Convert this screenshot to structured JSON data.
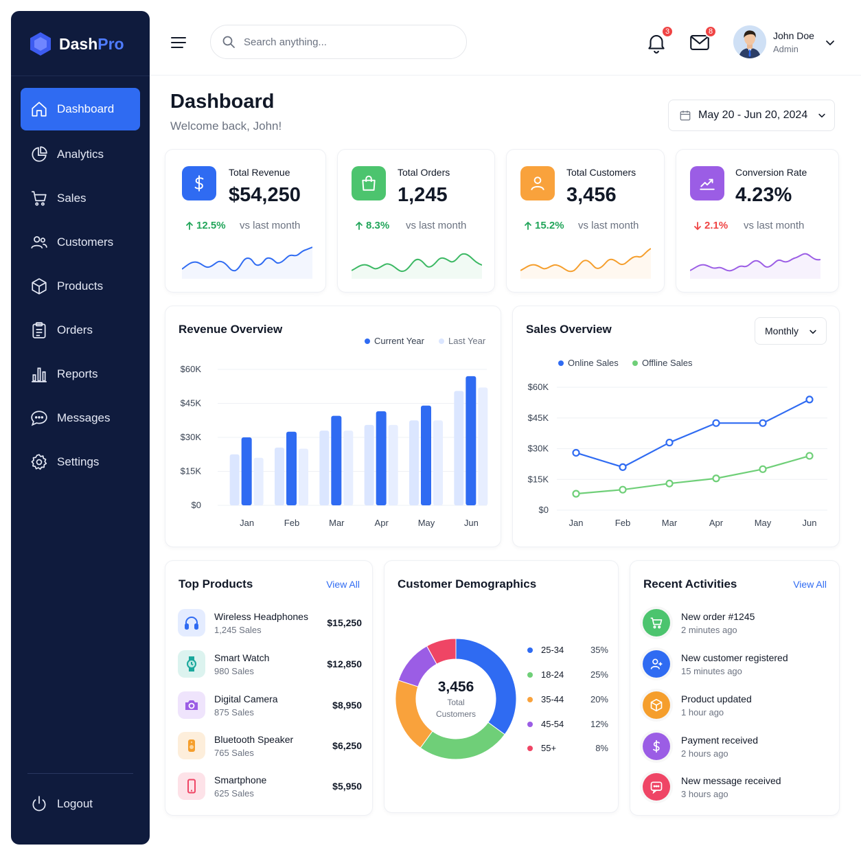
{
  "brand": {
    "name_main": "Dash",
    "name_accent": "Pro"
  },
  "sidebar": {
    "items": [
      {
        "label": "Dashboard",
        "icon": "home-icon",
        "active": true
      },
      {
        "label": "Analytics",
        "icon": "pie-chart-icon"
      },
      {
        "label": "Sales",
        "icon": "cart-icon"
      },
      {
        "label": "Customers",
        "icon": "users-icon"
      },
      {
        "label": "Products",
        "icon": "box-icon"
      },
      {
        "label": "Orders",
        "icon": "clipboard-icon"
      },
      {
        "label": "Reports",
        "icon": "bar-chart-icon"
      },
      {
        "label": "Messages",
        "icon": "chat-icon"
      },
      {
        "label": "Settings",
        "icon": "gear-icon"
      }
    ],
    "logout_label": "Logout"
  },
  "topbar": {
    "search_placeholder": "Search anything...",
    "notifications_count": "3",
    "messages_count": "8",
    "user_name": "John Doe",
    "user_role": "Admin"
  },
  "header": {
    "title": "Dashboard",
    "subtitle": "Welcome back, John!",
    "date_range": "May 20 - Jun 20, 2024"
  },
  "stats": [
    {
      "label": "Total Revenue",
      "value": "$54,250",
      "change": "12.5%",
      "direction": "up",
      "vs": "vs last month",
      "color": "#2f6bf2",
      "icon": "dollar-icon"
    },
    {
      "label": "Total Orders",
      "value": "1,245",
      "change": "8.3%",
      "direction": "up",
      "vs": "vs last month",
      "color": "#4cc46e",
      "icon": "shopping-bag-icon"
    },
    {
      "label": "Total Customers",
      "value": "3,456",
      "change": "15.2%",
      "direction": "up",
      "vs": "vs last month",
      "color": "#f59e2c",
      "icon": "user-icon"
    },
    {
      "label": "Conversion Rate",
      "value": "4.23%",
      "change": "2.1%",
      "direction": "down",
      "vs": "vs last month",
      "color": "#9b5de5",
      "icon": "trend-icon"
    }
  ],
  "revenue_overview": {
    "title": "Revenue Overview",
    "legend_current": "Current Year",
    "legend_last": "Last Year",
    "chart_data": {
      "type": "bar",
      "categories": [
        "Jan",
        "Feb",
        "Mar",
        "Apr",
        "May",
        "Jun"
      ],
      "series": [
        {
          "name": "Current Year",
          "values": [
            30000,
            32500,
            39500,
            41500,
            44000,
            57000
          ]
        },
        {
          "name": "Last Year",
          "values": [
            [
              22500,
              21000
            ],
            [
              25500,
              25000
            ],
            [
              33000,
              33000
            ],
            [
              35500,
              35500
            ],
            [
              37500,
              37500
            ],
            [
              50500,
              52000
            ]
          ]
        }
      ],
      "ylim": [
        0,
        60000
      ],
      "y_ticks": [
        "$0",
        "$15K",
        "$30K",
        "$45K",
        "$60K"
      ]
    }
  },
  "sales_overview": {
    "title": "Sales Overview",
    "period": "Monthly",
    "legend_online": "Online Sales",
    "legend_offline": "Offline Sales",
    "chart_data": {
      "type": "line",
      "categories": [
        "Jan",
        "Feb",
        "Mar",
        "Apr",
        "May",
        "Jun"
      ],
      "series": [
        {
          "name": "Online Sales",
          "values": [
            28000,
            21000,
            33000,
            42500,
            42500,
            54000
          ]
        },
        {
          "name": "Offline Sales",
          "values": [
            8000,
            10000,
            13000,
            15500,
            20000,
            26500
          ]
        }
      ],
      "ylim": [
        0,
        60000
      ],
      "y_ticks": [
        "$0",
        "$15K",
        "$30K",
        "$45K",
        "$60K"
      ]
    }
  },
  "top_products": {
    "title": "Top Products",
    "view_all": "View All",
    "items": [
      {
        "name": "Wireless Headphones",
        "sales": "1,245 Sales",
        "amount": "$15,250",
        "icon": "headphones-icon",
        "color": "#2f6bf2"
      },
      {
        "name": "Smart Watch",
        "sales": "980 Sales",
        "amount": "$12,850",
        "icon": "watch-icon",
        "color": "#1aa89c"
      },
      {
        "name": "Digital Camera",
        "sales": "875 Sales",
        "amount": "$8,950",
        "icon": "camera-icon",
        "color": "#9b5de5"
      },
      {
        "name": "Bluetooth Speaker",
        "sales": "765 Sales",
        "amount": "$6,250",
        "icon": "speaker-icon",
        "color": "#f59e2c"
      },
      {
        "name": "Smartphone",
        "sales": "625 Sales",
        "amount": "$5,950",
        "icon": "smartphone-icon",
        "color": "#ef4565"
      }
    ]
  },
  "demographics": {
    "title": "Customer Demographics",
    "center_value": "3,456",
    "center_label_1": "Total",
    "center_label_2": "Customers",
    "chart_data": {
      "type": "pie",
      "segments": [
        {
          "label": "25-34",
          "percent": "35%",
          "value": 35,
          "color": "#2f6bf2"
        },
        {
          "label": "18-24",
          "percent": "25%",
          "value": 25,
          "color": "#6fcf78"
        },
        {
          "label": "35-44",
          "percent": "20%",
          "value": 20,
          "color": "#f9a23c"
        },
        {
          "label": "45-54",
          "percent": "12%",
          "value": 12,
          "color": "#9b5de5"
        },
        {
          "label": "55+",
          "percent": "8%",
          "value": 8,
          "color": "#ef4565"
        }
      ]
    }
  },
  "activities": {
    "title": "Recent Activities",
    "view_all": "View All",
    "items": [
      {
        "title": "New order #1245",
        "time": "2 minutes ago",
        "icon": "cart-icon",
        "color": "#4cc46e"
      },
      {
        "title": "New customer registered",
        "time": "15 minutes ago",
        "icon": "user-plus-icon",
        "color": "#2f6bf2"
      },
      {
        "title": "Product updated",
        "time": "1 hour ago",
        "icon": "box-icon",
        "color": "#f59e2c"
      },
      {
        "title": "Payment received",
        "time": "2 hours ago",
        "icon": "dollar-icon",
        "color": "#9b5de5"
      },
      {
        "title": "New message received",
        "time": "3 hours ago",
        "icon": "chat-icon",
        "color": "#ef4565"
      }
    ]
  }
}
